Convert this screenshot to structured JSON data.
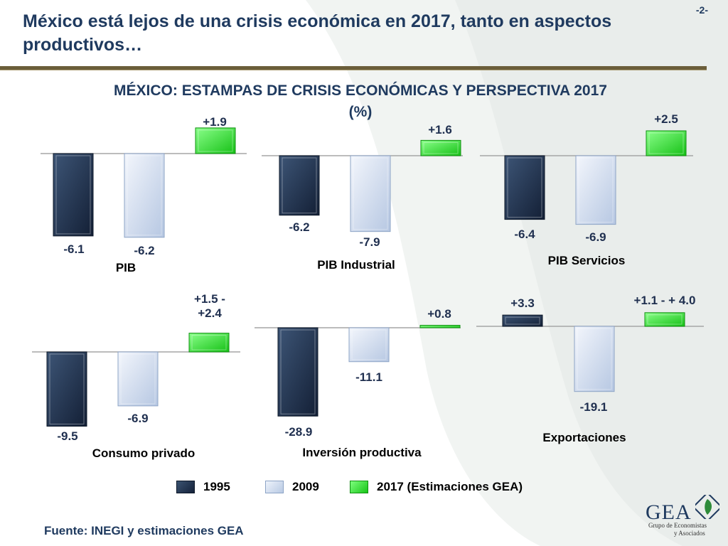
{
  "page": {
    "title": "México está lejos de una crisis económica en 2017, tanto en aspectos productivos…",
    "page_number": "-2-",
    "chart_title": "MÉXICO: ESTAMPAS DE CRISIS ECONÓMICAS Y PERSPECTIVA 2017",
    "chart_subtitle": "(%)",
    "source_label": "Fuente",
    "source_text": ": INEGI y estimaciones GEA",
    "logo_text": "GEA",
    "logo_sub_1": "Grupo de Economistas",
    "logo_sub_2": "y Asociados"
  },
  "legend": [
    {
      "label": "1995",
      "color": "#1c2b45"
    },
    {
      "label": "2009",
      "color": "#d6e1f1"
    },
    {
      "label": "2017 (Estimaciones GEA)",
      "color": "#33e633"
    }
  ],
  "colors": {
    "title": "#1f3a5f",
    "rule": "#6b5e3a",
    "bar_1995": "#1c2b45",
    "bar_2009": "#d6e1f1",
    "bar_2017": "#33e633"
  },
  "chart_data": [
    {
      "type": "bar",
      "title": "PIB",
      "categories": [
        "1995",
        "2009",
        "2017 (Estimaciones GEA)"
      ],
      "values": [
        -6.1,
        -6.2,
        1.9
      ],
      "labels": [
        "-6.1",
        "-6.2",
        "+1.9"
      ]
    },
    {
      "type": "bar",
      "title": "PIB Industrial",
      "categories": [
        "1995",
        "2009",
        "2017 (Estimaciones GEA)"
      ],
      "values": [
        -6.2,
        -7.9,
        1.6
      ],
      "labels": [
        "-6.2",
        "-7.9",
        "+1.6"
      ]
    },
    {
      "type": "bar",
      "title": "PIB Servicios",
      "categories": [
        "1995",
        "2009",
        "2017 (Estimaciones GEA)"
      ],
      "values": [
        -6.4,
        -6.9,
        2.5
      ],
      "labels": [
        "-6.4",
        "-6.9",
        "+2.5"
      ]
    },
    {
      "type": "bar",
      "title": "Consumo privado",
      "categories": [
        "1995",
        "2009",
        "2017 (Estimaciones GEA)"
      ],
      "values": [
        -9.5,
        -6.9,
        2.4
      ],
      "labels": [
        "-9.5",
        "-6.9",
        "+1.5 -\n+2.4"
      ]
    },
    {
      "type": "bar",
      "title": "Inversión productiva",
      "categories": [
        "1995",
        "2009",
        "2017 (Estimaciones GEA)"
      ],
      "values": [
        -28.9,
        -11.1,
        0.8
      ],
      "labels": [
        "-28.9",
        "-11.1",
        "+0.8"
      ]
    },
    {
      "type": "bar",
      "title": "Exportaciones",
      "categories": [
        "1995",
        "2009",
        "2017 (Estimaciones GEA)"
      ],
      "values": [
        3.3,
        -19.1,
        4.0
      ],
      "labels": [
        "+3.3",
        "-19.1",
        "+1.1 - + 4.0"
      ]
    }
  ]
}
